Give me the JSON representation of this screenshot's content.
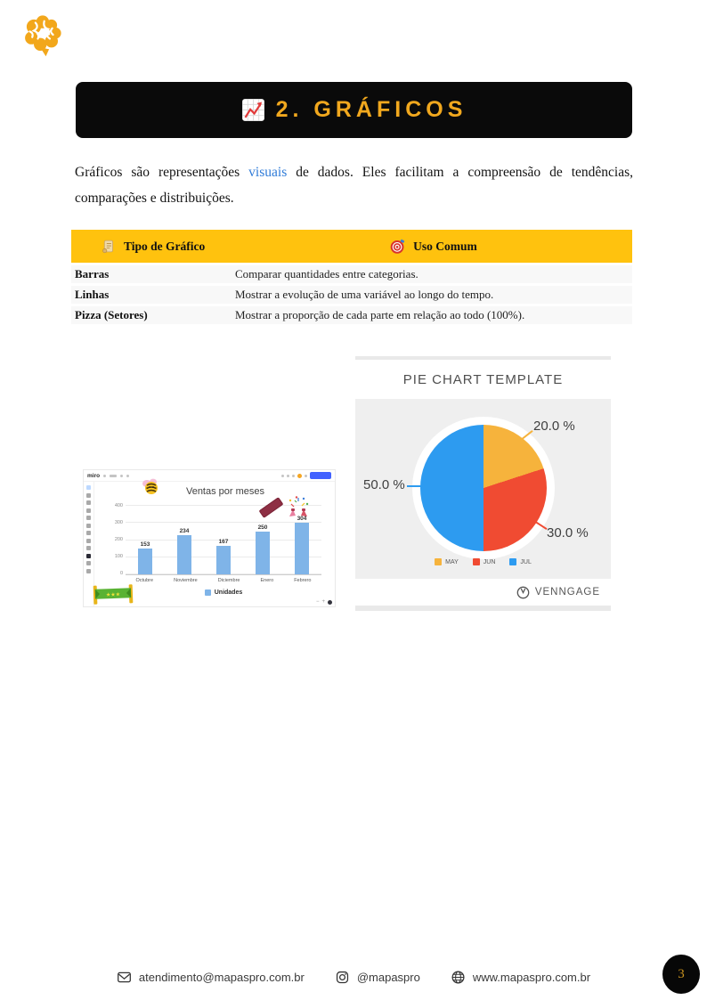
{
  "page": {
    "number": "3"
  },
  "banner": {
    "title": "2. GRÁFICOS",
    "bg": "#0a0a0a",
    "title_color": "#F1A81E"
  },
  "intro": {
    "before": "Gráficos são representações ",
    "highlight": "visuais",
    "highlight_color": "#2F7BD8",
    "after": " de dados. Eles facilitam a compreensão de tendências, comparações e distribuições."
  },
  "table": {
    "header_bg": "#FFC20E",
    "columns": [
      {
        "icon": "scroll-icon",
        "label": "Tipo de Gráfico"
      },
      {
        "icon": "target-icon",
        "label": "Uso Comum"
      }
    ],
    "rows": [
      {
        "tipo": "Barras",
        "uso": "Comparar quantidades entre categorias."
      },
      {
        "tipo": "Linhas",
        "uso": "Mostrar a evolução de uma variável ao longo do tempo."
      },
      {
        "tipo": "Pizza (Setores)",
        "uso": "Mostrar a proporção de cada parte em relação ao todo (100%)."
      }
    ]
  },
  "chart_data": [
    {
      "type": "bar",
      "app_label": "miro",
      "title": "Ventas por meses",
      "categories": [
        "Octubre",
        "Noviembre",
        "Diciembre",
        "Enero",
        "Febrero"
      ],
      "values": [
        153,
        234,
        167,
        250,
        304
      ],
      "yticks": [
        0,
        100,
        200,
        300,
        400
      ],
      "ylim": [
        0,
        400
      ],
      "grid": true,
      "bar_color": "#7FB4E8",
      "legend": [
        "Unidades"
      ],
      "legend_position": "bottom"
    },
    {
      "type": "pie",
      "title": "PIE CHART TEMPLATE",
      "series": [
        {
          "name": "MAY",
          "value": 20,
          "label": "20.0 %",
          "color": "#F6B33C"
        },
        {
          "name": "JUN",
          "value": 30,
          "label": "30.0 %",
          "color": "#F04B32"
        },
        {
          "name": "JUL",
          "value": 50,
          "label": "50.0 %",
          "color": "#2D9BF0"
        }
      ],
      "legend_position": "bottom",
      "panel_bg": "#efefef",
      "brand": "VENNGAGE"
    }
  ],
  "footer": {
    "email": "atendimento@mapaspro.com.br",
    "instagram": "@mapaspro",
    "website": "www.mapaspro.com.br"
  }
}
